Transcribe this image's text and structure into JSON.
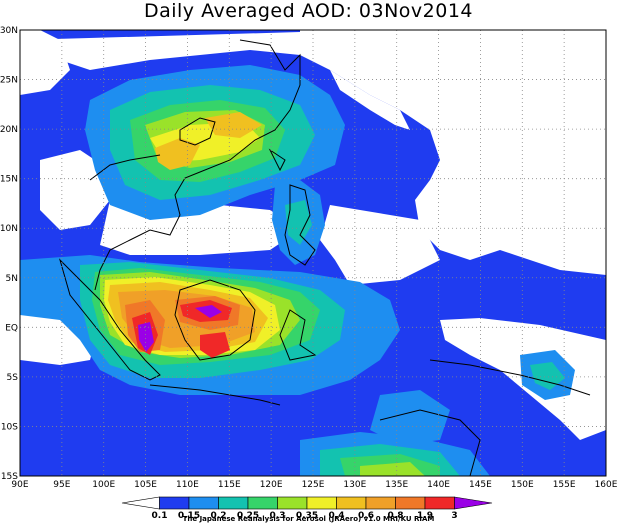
{
  "title": "Daily Averaged AOD: 03Nov2014",
  "credit": "The Japanese Reanalysis for Aerosol (JRAero) v1.0 MRI/KU RIAM",
  "map": {
    "lon_range": [
      90,
      160
    ],
    "lat_range": [
      -15,
      30
    ],
    "lon_ticks": [
      "90E",
      "95E",
      "100E",
      "105E",
      "110E",
      "115E",
      "120E",
      "125E",
      "130E",
      "135E",
      "140E",
      "145E",
      "150E",
      "155E",
      "160E"
    ],
    "lat_ticks": [
      "30N",
      "25N",
      "20N",
      "15N",
      "10N",
      "5N",
      "EQ",
      "5S",
      "10S",
      "15S"
    ],
    "gridlines": "dotted"
  },
  "colorbar": {
    "labels": [
      "0.1",
      "0.15",
      "0.2",
      "0.25",
      "0.3",
      "0.35",
      "0.4",
      "0.6",
      "0.8",
      "1.9",
      "3"
    ],
    "colors": [
      "#ffffff",
      "#1f3cf0",
      "#1e8ef0",
      "#13c2b0",
      "#36d46a",
      "#9ae22a",
      "#f0f028",
      "#f0c020",
      "#f0a028",
      "#f07828",
      "#f02828",
      "#9a00e6"
    ]
  }
}
